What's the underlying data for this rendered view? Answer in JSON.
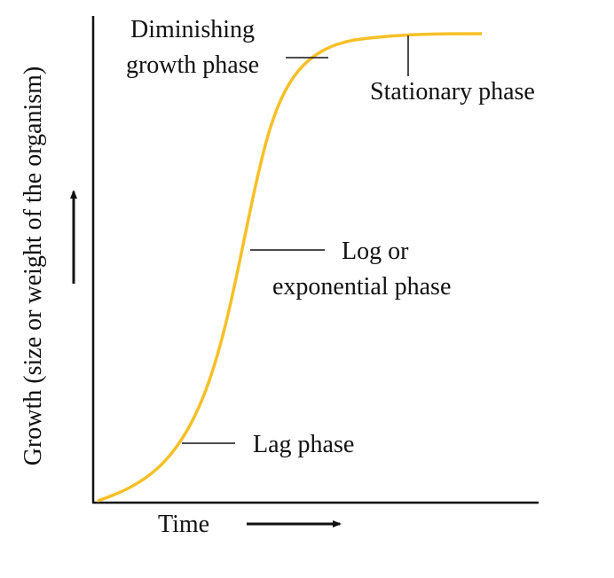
{
  "diagram": {
    "y_axis_label": "Growth (size or weight of the organism)",
    "x_axis_label": "Time",
    "phases": [
      {
        "lines": [
          "Diminishing",
          "growth phase"
        ]
      },
      {
        "lines": [
          "Stationary phase"
        ]
      },
      {
        "lines": [
          "Log or",
          "exponential phase"
        ]
      },
      {
        "lines": [
          "Lag phase"
        ]
      }
    ]
  }
}
